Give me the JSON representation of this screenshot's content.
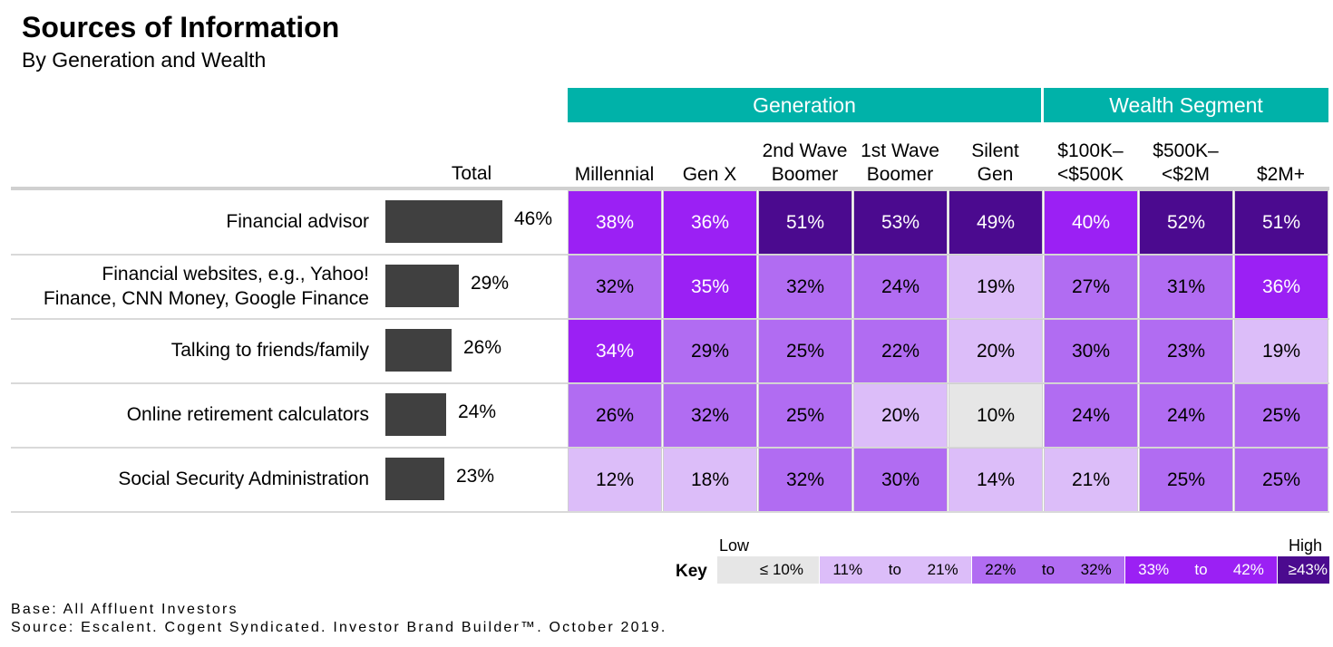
{
  "title": "Sources of Information",
  "subtitle": "By Generation and Wealth",
  "groups": [
    {
      "label": "Generation"
    },
    {
      "label": "Wealth Segment"
    }
  ],
  "total_header": "Total",
  "columns": [
    {
      "line1": "",
      "line2": "Millennial"
    },
    {
      "line1": "",
      "line2": "Gen X"
    },
    {
      "line1": "2nd Wave",
      "line2": "Boomer"
    },
    {
      "line1": "1st Wave",
      "line2": "Boomer"
    },
    {
      "line1": "Silent",
      "line2": "Gen"
    },
    {
      "line1": "$100K–",
      "line2": "<$500K"
    },
    {
      "line1": "$500K–",
      "line2": "<$2M"
    },
    {
      "line1": "",
      "line2": "$2M+"
    }
  ],
  "rows": [
    {
      "label1": "Financial advisor",
      "label2": "",
      "total": "46%",
      "cells": [
        "38%",
        "36%",
        "51%",
        "53%",
        "49%",
        "40%",
        "52%",
        "51%"
      ]
    },
    {
      "label1": "Financial websites, e.g., Yahoo!",
      "label2": "Finance, CNN Money, Google Finance",
      "total": "29%",
      "cells": [
        "32%",
        "35%",
        "32%",
        "24%",
        "19%",
        "27%",
        "31%",
        "36%"
      ]
    },
    {
      "label1": "Talking to friends/family",
      "label2": "",
      "total": "26%",
      "cells": [
        "34%",
        "29%",
        "25%",
        "22%",
        "20%",
        "30%",
        "23%",
        "19%"
      ]
    },
    {
      "label1": "Online retirement calculators",
      "label2": "",
      "total": "24%",
      "cells": [
        "26%",
        "32%",
        "25%",
        "20%",
        "10%",
        "24%",
        "24%",
        "25%"
      ]
    },
    {
      "label1": "Social Security Administration",
      "label2": "",
      "total": "23%",
      "cells": [
        "12%",
        "18%",
        "32%",
        "30%",
        "14%",
        "21%",
        "25%",
        "25%"
      ]
    }
  ],
  "chart_data": {
    "type": "heatmap",
    "title": "Sources of Information",
    "subtitle": "By Generation and Wealth",
    "column_groups": [
      {
        "name": "Generation",
        "columns": [
          "Millennial",
          "Gen X",
          "2nd Wave Boomer",
          "1st Wave Boomer",
          "Silent Gen"
        ]
      },
      {
        "name": "Wealth Segment",
        "columns": [
          "$100K–<$500K",
          "$500K–<$2M",
          "$2M+"
        ]
      }
    ],
    "rows": [
      "Financial advisor",
      "Financial websites, e.g., Yahoo! Finance, CNN Money, Google Finance",
      "Talking to friends/family",
      "Online retirement calculators",
      "Social Security Administration"
    ],
    "total": [
      46,
      29,
      26,
      24,
      23
    ],
    "values": [
      [
        38,
        36,
        51,
        53,
        49,
        40,
        52,
        51
      ],
      [
        32,
        35,
        32,
        24,
        19,
        27,
        31,
        36
      ],
      [
        34,
        29,
        25,
        22,
        20,
        30,
        23,
        19
      ],
      [
        26,
        32,
        25,
        20,
        10,
        24,
        24,
        25
      ],
      [
        12,
        18,
        32,
        30,
        14,
        21,
        25,
        25
      ]
    ],
    "unit": "%"
  },
  "key": {
    "title": "Key",
    "low": "Low",
    "high": "High",
    "to_word": "to",
    "segments": [
      {
        "a": "≤ 10%",
        "b": "",
        "color": "#e6e6e6",
        "text_color": "#000000"
      },
      {
        "a": "11%",
        "b": "21%",
        "color": "#dcbdf9",
        "text_color": "#000000"
      },
      {
        "a": "22%",
        "b": "32%",
        "color": "#b16cf2",
        "text_color": "#000000"
      },
      {
        "a": "33%",
        "b": "42%",
        "color": "#9b20f4",
        "text_color": "#ffffff"
      },
      {
        "a": "≥43%",
        "b": "",
        "color": "#4b0a8f",
        "text_color": "#ffffff"
      }
    ]
  },
  "colors": {
    "header": "#00b2a9",
    "bar": "#404040"
  },
  "footer": {
    "base": "Base: All Affluent Investors",
    "source": "Source: Escalent. Cogent Syndicated. Investor Brand Builder™. October 2019."
  }
}
